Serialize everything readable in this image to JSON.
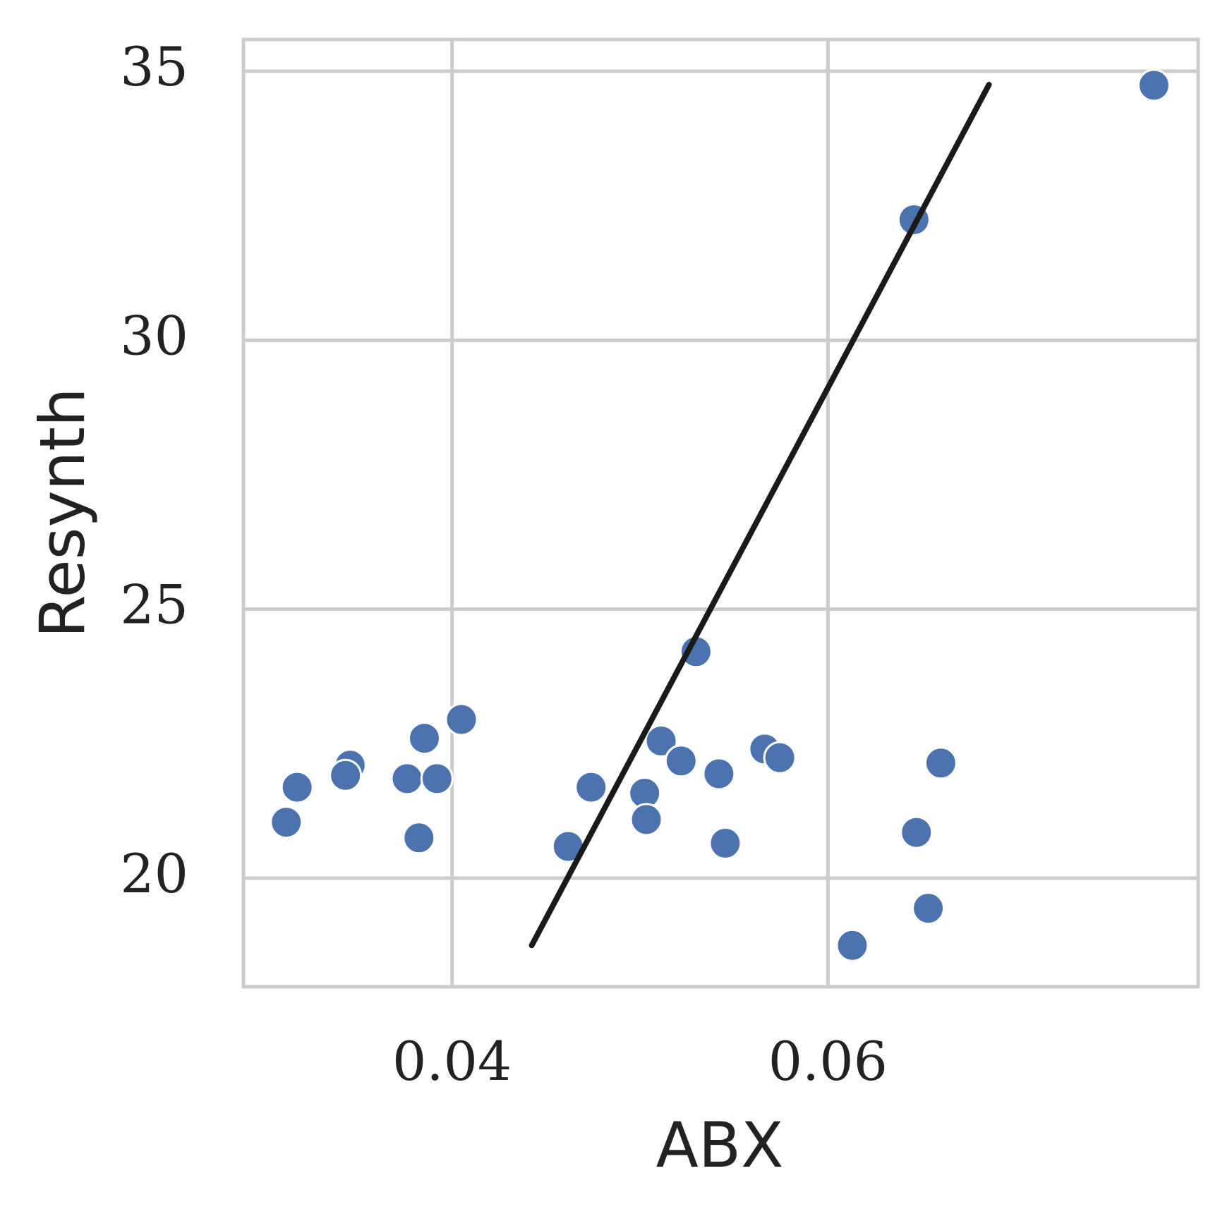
{
  "chart_data": {
    "type": "scatter",
    "xlabel": "ABX",
    "ylabel": "Resynth",
    "x": [
      0.07735,
      0.06458,
      0.05298,
      0.0405,
      0.03853,
      0.03458,
      0.03433,
      0.03176,
      0.03118,
      0.03761,
      0.0392,
      0.03824,
      0.04618,
      0.0474,
      0.05025,
      0.05034,
      0.05113,
      0.05219,
      0.0542,
      0.05454,
      0.05664,
      0.05744,
      0.06601,
      0.06471,
      0.06534,
      0.0613
    ],
    "values": [
      34.74,
      32.24,
      24.21,
      22.95,
      22.6,
      22.1,
      21.91,
      21.69,
      21.04,
      21.85,
      21.85,
      20.75,
      20.59,
      21.69,
      21.58,
      21.09,
      22.55,
      22.18,
      21.94,
      20.65,
      22.4,
      22.24,
      22.14,
      20.85,
      19.44,
      18.75
    ],
    "color": "#4c72b0",
    "fit": {
      "x": [
        0.04424,
        0.06857
      ],
      "values": [
        18.75,
        34.75
      ],
      "color": "#1a1a1a"
    },
    "xlim": [
      0.0289,
      0.0797
    ],
    "ylim": [
      17.98,
      35.59
    ],
    "xticks": [
      {
        "value": 0.04,
        "label": "0.04"
      },
      {
        "value": 0.06,
        "label": "0.06"
      }
    ],
    "yticks": [
      20,
      25,
      30,
      35
    ],
    "grid": true
  }
}
